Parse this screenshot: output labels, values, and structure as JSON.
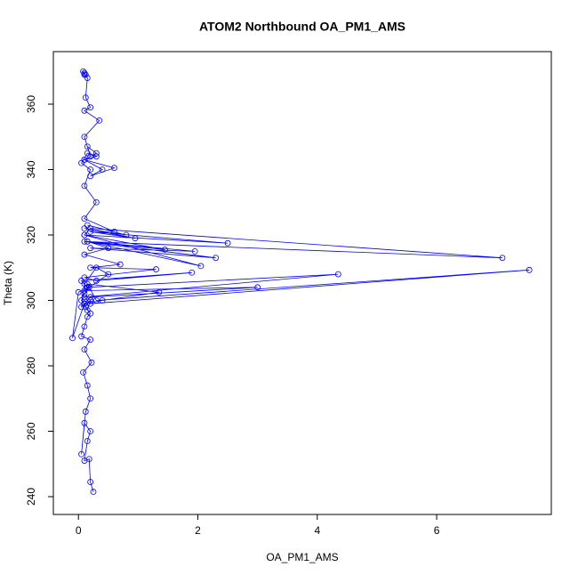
{
  "chart_data": {
    "type": "line",
    "title": "ATOM2 Northbound OA_PM1_AMS",
    "x_label": "OA_PM1_AMS",
    "y_label": "Theta (K)",
    "color": "#0000ff",
    "markers": true,
    "xlim": [
      -0.42,
      7.92
    ],
    "ylim": [
      234.56,
      376.05
    ],
    "xticks": [
      0,
      2,
      4,
      6
    ],
    "yticks": [
      240,
      260,
      280,
      300,
      320,
      340,
      360
    ],
    "series": [
      {
        "name": null,
        "color": "#0000ff",
        "x": [
          0.25,
          0.2,
          0.18,
          0.1,
          0.15,
          0.2,
          0.1,
          0.05,
          0.12,
          0.2,
          0.15,
          0.08,
          0.22,
          0.1,
          0.2,
          0.05,
          0.1,
          0.15,
          0.2,
          0.12,
          0.05,
          0.1,
          0.18,
          0.0,
          -0.1,
          0.1,
          0.15,
          0.2,
          0.05,
          0.1,
          0.3,
          0.5,
          0.1,
          3.0,
          0.2,
          0.1,
          0.4,
          1.35,
          0.15,
          0.3,
          7.55,
          0.2,
          0.1,
          4.35,
          0.15,
          0.05,
          1.9,
          0.3,
          0.1,
          1.3,
          0.2,
          0.7,
          0.1,
          0.5,
          0.15,
          2.05,
          0.1,
          0.2,
          7.1,
          0.1,
          2.3,
          0.2,
          1.95,
          0.15,
          1.45,
          0.1,
          2.5,
          0.2,
          0.95,
          0.1,
          0.8,
          0.15,
          0.6,
          0.1,
          0.3,
          0.1,
          0.2,
          0.05,
          0.15,
          0.3,
          0.1,
          0.6,
          0.2,
          0.4,
          0.1,
          0.3,
          0.15,
          0.2,
          0.1,
          0.35,
          0.1,
          0.2,
          0.12,
          0.15,
          0.1,
          0.08,
          0.1,
          0.12
        ],
        "values": [
          241.5,
          244.5,
          251.5,
          251,
          257,
          260,
          262.5,
          253,
          266,
          270,
          274,
          278,
          281,
          285,
          288,
          289,
          292,
          295,
          296,
          298,
          300,
          302,
          304,
          302.5,
          288.5,
          299,
          297,
          300,
          298,
          305,
          310,
          308,
          303,
          304,
          301,
          299,
          300,
          302.5,
          305,
          300,
          309.3,
          299,
          301,
          308,
          304,
          306,
          308.5,
          306,
          307,
          309.5,
          310,
          311,
          314,
          316,
          318,
          310.5,
          320,
          322,
          313,
          318,
          313,
          316,
          315,
          318,
          315.5,
          320,
          317.5,
          321,
          319,
          322,
          320,
          323,
          321,
          325,
          330,
          335,
          340,
          342,
          345,
          344,
          343,
          340.5,
          338,
          340,
          343,
          345,
          347,
          344,
          350,
          355,
          358,
          359,
          362,
          368,
          369,
          370,
          369.5,
          369
        ]
      }
    ]
  }
}
